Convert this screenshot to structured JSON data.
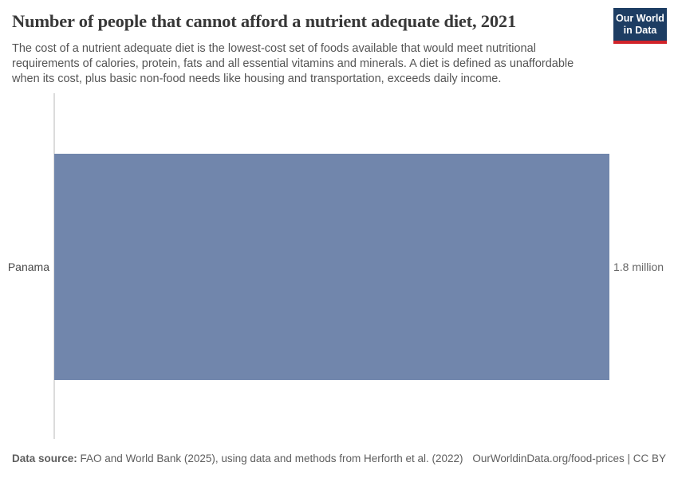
{
  "header": {
    "title": "Number of people that cannot afford a nutrient adequate diet, 2021",
    "subtitle": "The cost of a nutrient adequate diet is the lowest-cost set of foods available that would meet nutritional requirements of calories, protein, fats and all essential vitamins and minerals. A diet is defined as unaffordable when its cost, plus basic non-food needs like housing and transportation, exceeds daily income."
  },
  "logo": {
    "line1": "Our World",
    "line2": "in Data",
    "background_color": "#1d3d63",
    "stripe_color": "#d1232a"
  },
  "chart_data": {
    "type": "bar",
    "orientation": "horizontal",
    "title": "Number of people that cannot afford a nutrient adequate diet, 2021",
    "year": "2021",
    "categories": [
      "Panama"
    ],
    "values": [
      1800000
    ],
    "value_labels": [
      "1.8 million"
    ],
    "bar_color": "#7186ac",
    "xlim": [
      0,
      1800000
    ],
    "grid": false,
    "legend": false
  },
  "footer": {
    "datasource_label": "Data source:",
    "datasource_text": " FAO and World Bank (2025), using data and methods from Herforth et al. (2022)",
    "credit": "OurWorldinData.org/food-prices | CC BY"
  }
}
